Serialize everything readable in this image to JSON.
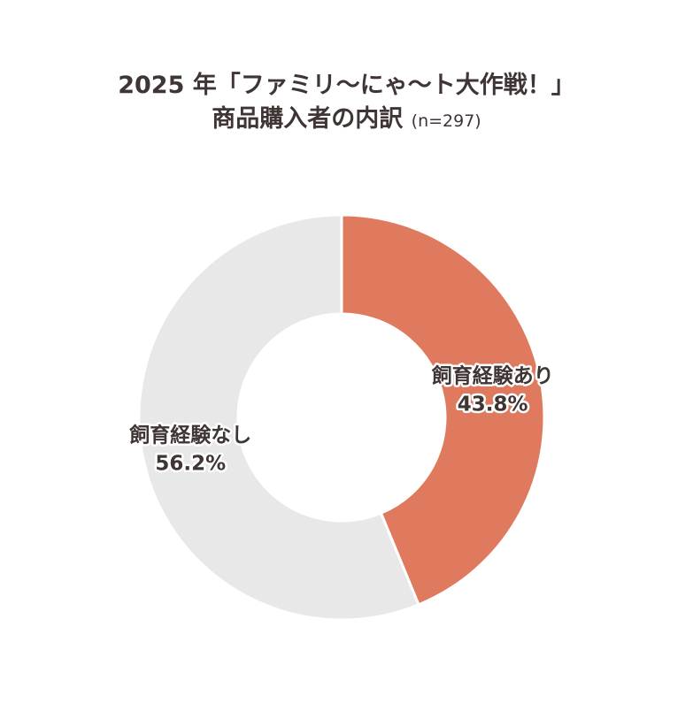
{
  "title": {
    "line1": "2025 年「ファミリ〜にゃ〜ト大作戦！」",
    "line2": "商品購入者の内訳",
    "sample_note": "(n=297)"
  },
  "chart_data": {
    "type": "pie",
    "style": "donut",
    "start_angle_deg": 0,
    "direction": "clockwise",
    "slices": [
      {
        "label": "飼育経験あり",
        "value": 43.8,
        "value_label": "43.8%",
        "color": "#e07a5f"
      },
      {
        "label": "飼育経験なし",
        "value": 56.2,
        "value_label": "56.2%",
        "color": "#e8e8e8"
      }
    ]
  }
}
